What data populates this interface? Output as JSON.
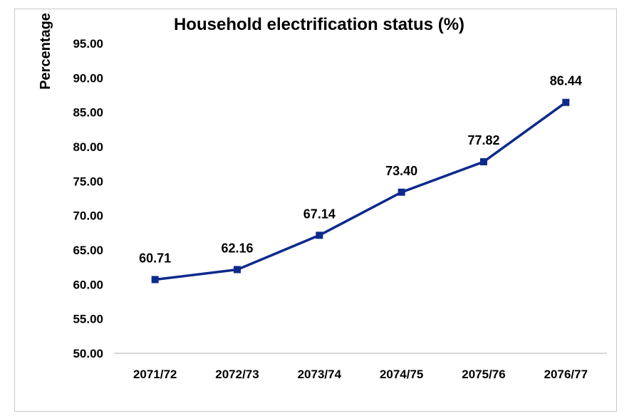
{
  "chart_data": {
    "type": "line",
    "title": "Household electrification status (%)",
    "ylabel": "Percentage",
    "xlabel": "",
    "categories": [
      "2071/72",
      "2072/73",
      "2073/74",
      "2074/75",
      "2075/76",
      "2076/77"
    ],
    "series": [
      {
        "values": [
          60.71,
          62.16,
          67.14,
          73.4,
          77.82,
          86.44
        ],
        "color": "#0d2a8c"
      }
    ],
    "data_labels": [
      "60.71",
      "62.16",
      "67.14",
      "73.40",
      "77.82",
      "86.44"
    ],
    "ylim": [
      50,
      95
    ],
    "yticks": [
      50,
      55,
      60,
      65,
      70,
      75,
      80,
      85,
      90,
      95
    ],
    "ytick_labels": [
      "50.00",
      "55.00",
      "60.00",
      "65.00",
      "70.00",
      "75.00",
      "80.00",
      "85.00",
      "90.00",
      "95.00"
    ],
    "grid": false,
    "legend": "none",
    "marker": "square"
  }
}
